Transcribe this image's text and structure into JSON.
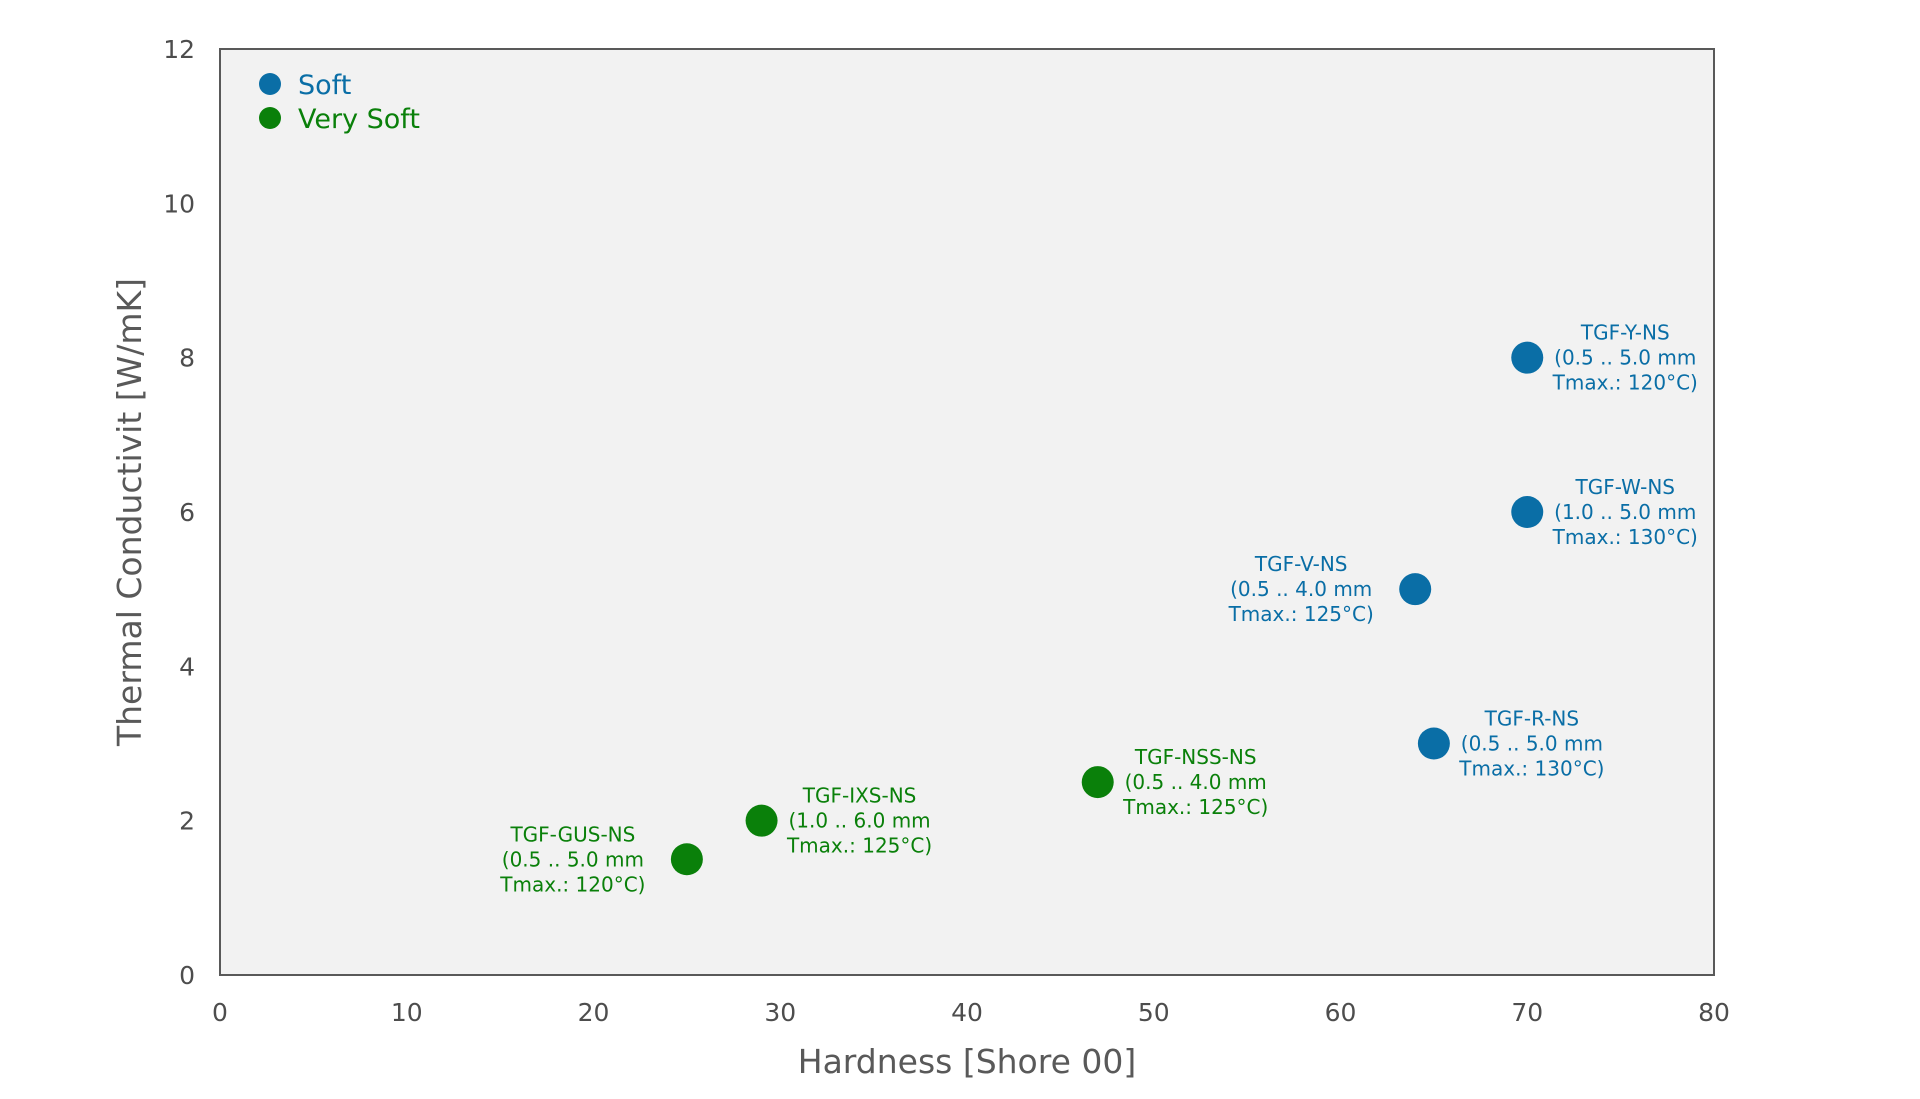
{
  "chart_data": {
    "type": "scatter",
    "xlabel": "Hardness [Shore 00]",
    "ylabel": "Thermal Conductivit [W/mK]",
    "xlim": [
      0,
      80
    ],
    "ylim": [
      0,
      12
    ],
    "xticks": [
      "0",
      "10",
      "20",
      "30",
      "40",
      "50",
      "60",
      "70",
      "80"
    ],
    "yticks": [
      "0",
      "2",
      "4",
      "6",
      "8",
      "10",
      "12"
    ],
    "grid": false,
    "legend_position": "top-left",
    "series": [
      {
        "name": "Soft",
        "color": "#0a6ea6",
        "points": [
          {
            "x": 70,
            "y": 8,
            "label": [
              "TGF-Y-NS",
              "(0.5 .. 5.0 mm",
              "Tmax.: 120°C)"
            ],
            "label_side": "right"
          },
          {
            "x": 70,
            "y": 6,
            "label": [
              "TGF-W-NS",
              "(1.0 .. 5.0 mm",
              "Tmax.: 130°C)"
            ],
            "label_side": "right"
          },
          {
            "x": 64,
            "y": 5,
            "label": [
              "TGF-V-NS",
              "(0.5 .. 4.0 mm",
              "Tmax.: 125°C)"
            ],
            "label_side": "left"
          },
          {
            "x": 65,
            "y": 3,
            "label": [
              "TGF-R-NS",
              "(0.5 .. 5.0 mm",
              "Tmax.: 130°C)"
            ],
            "label_side": "right"
          }
        ]
      },
      {
        "name": "Very Soft",
        "color": "#0a800a",
        "points": [
          {
            "x": 25,
            "y": 1.5,
            "label": [
              "TGF-GUS-NS",
              "(0.5 .. 5.0 mm",
              "Tmax.: 120°C)"
            ],
            "label_side": "left"
          },
          {
            "x": 29,
            "y": 2,
            "label": [
              "TGF-IXS-NS",
              "(1.0 .. 6.0 mm",
              "Tmax.: 125°C)"
            ],
            "label_side": "right"
          },
          {
            "x": 47,
            "y": 2.5,
            "label": [
              "TGF-NSS-NS",
              "(0.5 .. 4.0 mm",
              "Tmax.: 125°C)"
            ],
            "label_side": "right"
          }
        ]
      }
    ]
  }
}
